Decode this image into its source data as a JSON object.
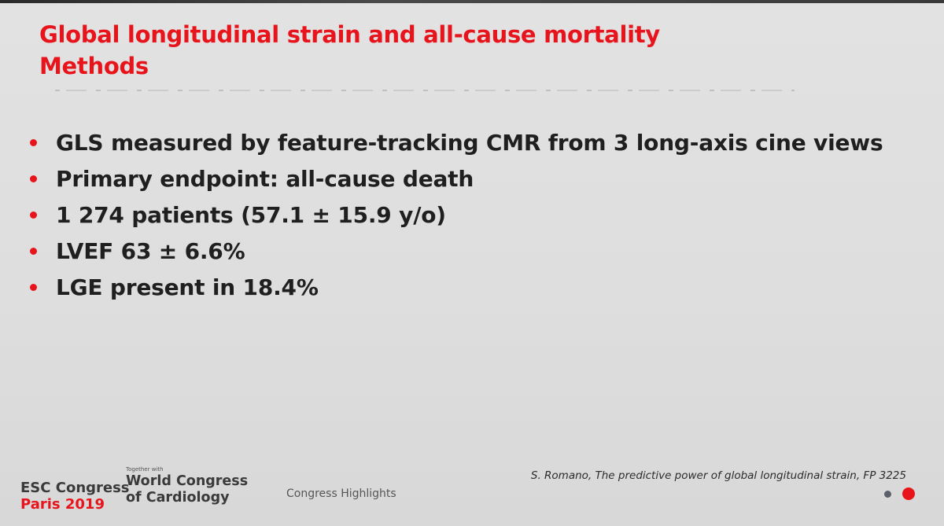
{
  "slide": {
    "title_line1": "Global longitudinal strain and all-cause mortality",
    "title_line2": "Methods",
    "bullets": [
      "GLS measured by feature-tracking CMR from 3 long-axis cine views",
      "Primary endpoint: all-cause death",
      "1 274 patients (57.1 ± 15.9 y/o)",
      "LVEF 63 ± 6.6%",
      "LGE present in 18.4%"
    ],
    "citation": "S. Romano, The predictive power of global longitudinal strain, FP 3225"
  },
  "footer": {
    "esc_line1": "ESC Congress",
    "esc_line2": "Paris 2019",
    "wcc_small": "Together with",
    "wcc_line1": "World Congress",
    "wcc_line2": "of Cardiology",
    "highlights": "Congress Highlights"
  },
  "colors": {
    "accent_red": "#e8141c",
    "text_dark": "#1f1f1f",
    "background": "#dedede",
    "nav_grey": "#5a6068"
  },
  "icons": {
    "bullet": "red-dot-bullet",
    "nav_previous": "grey-dot",
    "nav_current": "red-dot"
  }
}
